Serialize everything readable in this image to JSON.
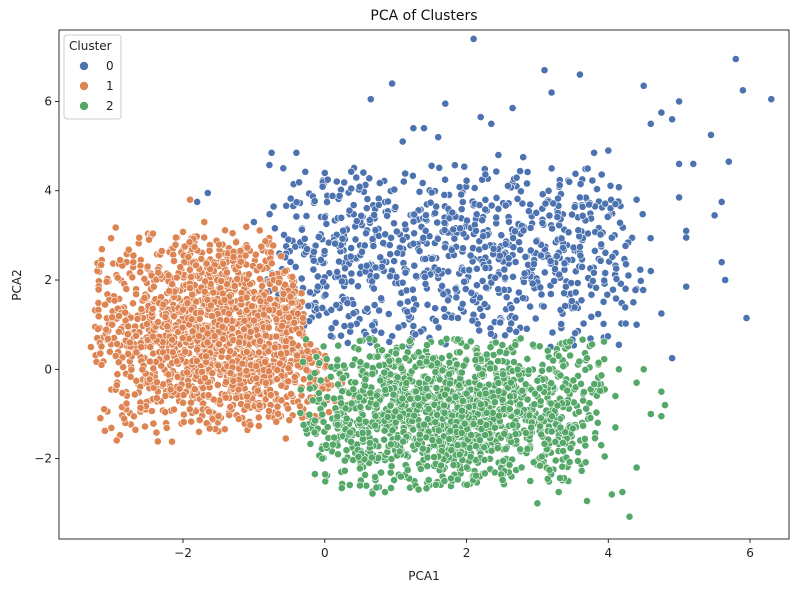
{
  "chart_data": {
    "type": "scatter",
    "title": "PCA of Clusters",
    "xlabel": "PCA1",
    "ylabel": "PCA2",
    "xlim": [
      -3.75,
      6.55
    ],
    "ylim": [
      -3.8,
      7.6
    ],
    "x_ticks": [
      -2,
      0,
      2,
      4,
      6
    ],
    "y_ticks": [
      -2,
      0,
      2,
      4,
      6
    ],
    "x_tick_labels": [
      "−2",
      "0",
      "2",
      "4",
      "6"
    ],
    "y_tick_labels": [
      "−2",
      "0",
      "2",
      "4",
      "6"
    ],
    "grid": false,
    "legend": {
      "title": "Cluster",
      "placement": "top-left"
    },
    "colors": {
      "0": "#4c72b0",
      "1": "#dd8452",
      "2": "#55a868"
    },
    "series": [
      {
        "name": "0",
        "color": "#4c72b0",
        "points": [
          [
            2.1,
            7.4
          ],
          [
            3.1,
            6.7
          ],
          [
            3.6,
            6.6
          ],
          [
            5.8,
            6.95
          ],
          [
            5.9,
            6.25
          ],
          [
            6.3,
            6.05
          ],
          [
            0.95,
            6.4
          ],
          [
            0.65,
            6.05
          ],
          [
            1.7,
            5.95
          ],
          [
            3.2,
            6.2
          ],
          [
            4.5,
            6.35
          ],
          [
            2.65,
            5.85
          ],
          [
            4.6,
            5.5
          ],
          [
            4.75,
            5.75
          ],
          [
            5.0,
            6.0
          ],
          [
            4.9,
            5.6
          ],
          [
            5.45,
            5.25
          ],
          [
            5.0,
            4.6
          ],
          [
            5.2,
            4.6
          ],
          [
            5.7,
            4.65
          ],
          [
            5.0,
            3.85
          ],
          [
            5.6,
            3.75
          ],
          [
            5.5,
            3.45
          ],
          [
            5.1,
            3.1
          ],
          [
            5.1,
            2.95
          ],
          [
            5.6,
            2.4
          ],
          [
            5.65,
            2.0
          ],
          [
            5.95,
            1.15
          ],
          [
            5.1,
            1.85
          ],
          [
            4.9,
            0.25
          ],
          [
            4.75,
            1.25
          ],
          [
            4.6,
            2.2
          ],
          [
            4.4,
            3.8
          ],
          [
            4.4,
            1.0
          ],
          [
            4.15,
            0.55
          ],
          [
            3.9,
            2.8
          ],
          [
            -0.75,
            4.85
          ],
          [
            -1.65,
            3.95
          ],
          [
            -1.8,
            3.75
          ],
          [
            -0.4,
            4.85
          ],
          [
            0.0,
            4.4
          ],
          [
            -1.0,
            3.3
          ],
          [
            1.25,
            5.4
          ],
          [
            1.4,
            5.4
          ],
          [
            1.1,
            5.1
          ],
          [
            1.6,
            5.2
          ],
          [
            2.2,
            5.65
          ],
          [
            2.35,
            5.5
          ],
          [
            2.45,
            4.8
          ],
          [
            2.8,
            4.75
          ],
          [
            3.2,
            4.5
          ],
          [
            3.45,
            4.2
          ],
          [
            3.6,
            3.85
          ],
          [
            3.8,
            4.85
          ],
          [
            4.0,
            4.9
          ],
          [
            4.1,
            3.7
          ]
        ],
        "cloud": {
          "xrange": [
            -1.1,
            4.7
          ],
          "yrange": [
            0.35,
            4.6
          ],
          "count": 900
        }
      },
      {
        "name": "1",
        "color": "#dd8452",
        "points": [
          [
            -1.9,
            3.8
          ],
          [
            -2.1,
            2.95
          ],
          [
            -2.7,
            2.55
          ],
          [
            -2.3,
            2.65
          ],
          [
            -3.1,
            1.45
          ],
          [
            -3.2,
            0.9
          ],
          [
            -3.3,
            0.5
          ],
          [
            -2.95,
            0.3
          ],
          [
            -1.7,
            3.3
          ],
          [
            -1.3,
            3.05
          ],
          [
            -2.5,
            2.3
          ],
          [
            -2.8,
            1.8
          ],
          [
            -3.0,
            1.0
          ],
          [
            -3.15,
            0.1
          ],
          [
            -2.0,
            -0.75
          ],
          [
            -1.5,
            -1.05
          ],
          [
            -1.05,
            -1.25
          ],
          [
            -0.55,
            -1.55
          ]
        ],
        "cloud": {
          "xrange": [
            -3.25,
            0.5
          ],
          "yrange": [
            -1.65,
            3.2
          ],
          "count": 1600
        }
      },
      {
        "name": "2",
        "color": "#55a868",
        "points": [
          [
            4.3,
            -3.3
          ],
          [
            4.05,
            -2.8
          ],
          [
            4.2,
            -2.75
          ],
          [
            4.4,
            -2.2
          ],
          [
            3.7,
            -2.95
          ],
          [
            3.3,
            -2.75
          ],
          [
            4.75,
            -0.5
          ],
          [
            4.8,
            -0.8
          ],
          [
            4.75,
            -1.05
          ],
          [
            4.6,
            -1.0
          ],
          [
            4.5,
            0.0
          ],
          [
            4.4,
            -0.3
          ],
          [
            4.1,
            -0.6
          ],
          [
            4.1,
            -1.3
          ],
          [
            3.9,
            -1.7
          ],
          [
            3.95,
            -1.95
          ],
          [
            3.0,
            -3.0
          ],
          [
            2.9,
            -2.5
          ],
          [
            4.15,
            0.0
          ],
          [
            3.7,
            0.25
          ],
          [
            3.3,
            0.3
          ]
        ],
        "cloud": {
          "xrange": [
            -0.35,
            4.0
          ],
          "yrange": [
            -2.8,
            0.75
          ],
          "count": 1500
        }
      }
    ]
  }
}
